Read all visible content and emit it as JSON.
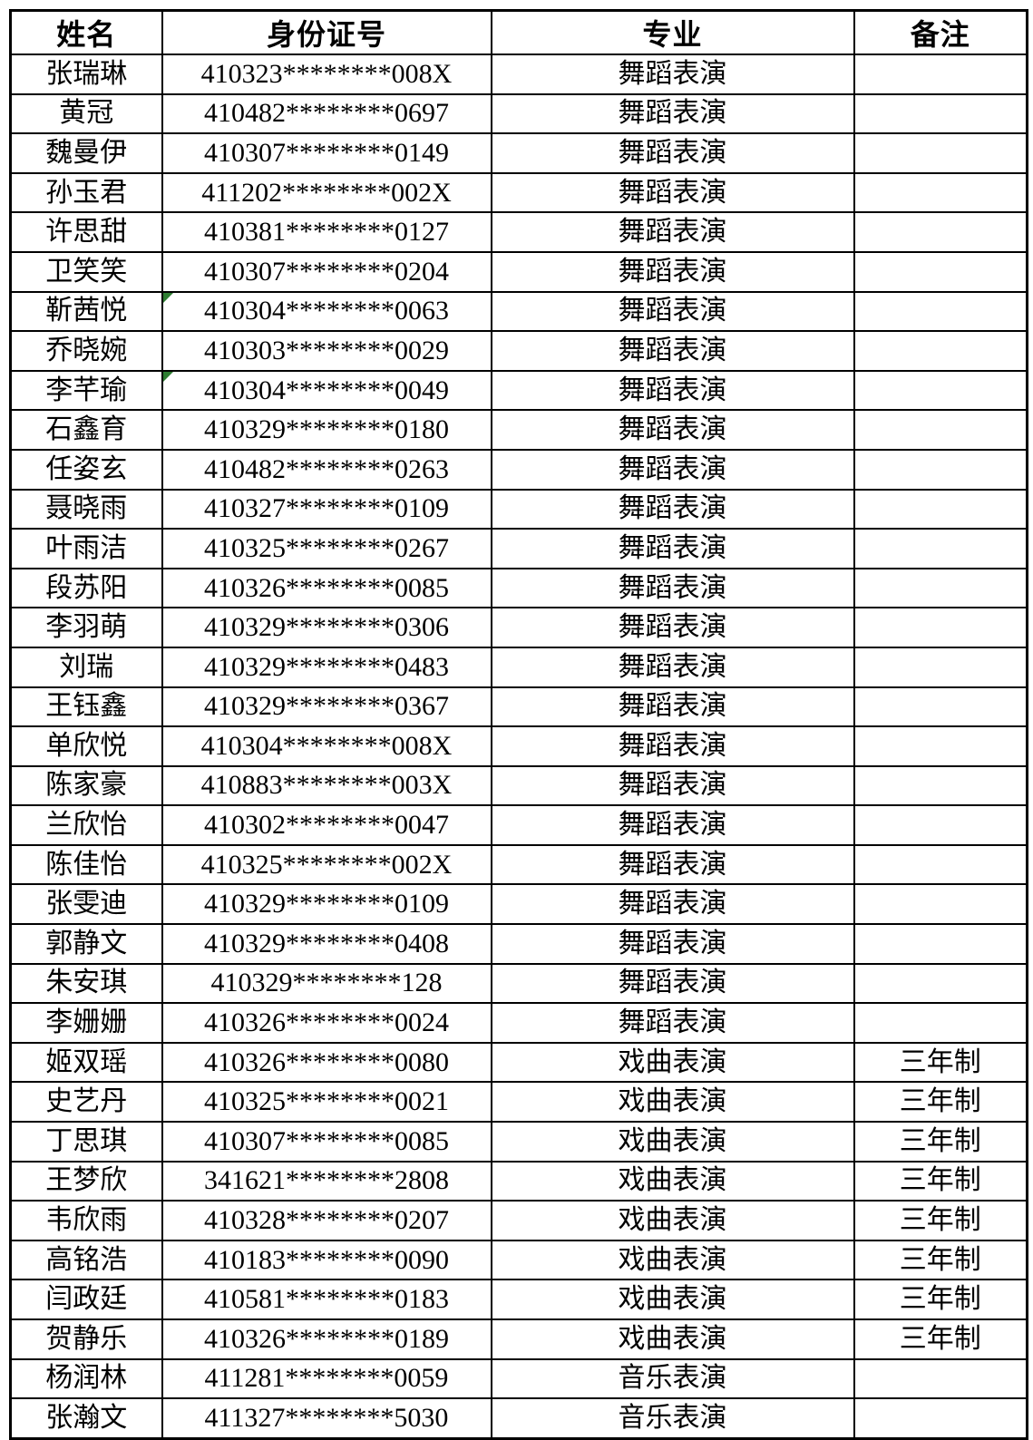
{
  "table": {
    "headers": [
      "姓名",
      "身份证号",
      "专业",
      "备注"
    ],
    "rows": [
      {
        "name": "张瑞琳",
        "id_number": "410323********008X",
        "major": "舞蹈表演",
        "note": "",
        "error_marker": false
      },
      {
        "name": "黄冠",
        "id_number": "410482********0697",
        "major": "舞蹈表演",
        "note": "",
        "error_marker": false
      },
      {
        "name": "魏曼伊",
        "id_number": "410307********0149",
        "major": "舞蹈表演",
        "note": "",
        "error_marker": false
      },
      {
        "name": "孙玉君",
        "id_number": "411202********002X",
        "major": "舞蹈表演",
        "note": "",
        "error_marker": false
      },
      {
        "name": "许思甜",
        "id_number": "410381********0127",
        "major": "舞蹈表演",
        "note": "",
        "error_marker": false
      },
      {
        "name": "卫笑笑",
        "id_number": "410307********0204",
        "major": "舞蹈表演",
        "note": "",
        "error_marker": false
      },
      {
        "name": "靳茜悦",
        "id_number": "410304********0063",
        "major": "舞蹈表演",
        "note": "",
        "error_marker": true
      },
      {
        "name": "乔晓婉",
        "id_number": "410303********0029",
        "major": "舞蹈表演",
        "note": "",
        "error_marker": false
      },
      {
        "name": "李芊瑜",
        "id_number": "410304********0049",
        "major": "舞蹈表演",
        "note": "",
        "error_marker": true
      },
      {
        "name": "石鑫育",
        "id_number": "410329********0180",
        "major": "舞蹈表演",
        "note": "",
        "error_marker": false
      },
      {
        "name": "任姿玄",
        "id_number": "410482********0263",
        "major": "舞蹈表演",
        "note": "",
        "error_marker": false
      },
      {
        "name": "聂晓雨",
        "id_number": "410327********0109",
        "major": "舞蹈表演",
        "note": "",
        "error_marker": false
      },
      {
        "name": "叶雨洁",
        "id_number": "410325********0267",
        "major": "舞蹈表演",
        "note": "",
        "error_marker": false
      },
      {
        "name": "段苏阳",
        "id_number": "410326********0085",
        "major": "舞蹈表演",
        "note": "",
        "error_marker": false
      },
      {
        "name": "李羽萌",
        "id_number": "410329********0306",
        "major": "舞蹈表演",
        "note": "",
        "error_marker": false
      },
      {
        "name": "刘瑞",
        "id_number": "410329********0483",
        "major": "舞蹈表演",
        "note": "",
        "error_marker": false
      },
      {
        "name": "王钰鑫",
        "id_number": "410329********0367",
        "major": "舞蹈表演",
        "note": "",
        "error_marker": false
      },
      {
        "name": "单欣悦",
        "id_number": "410304********008X",
        "major": "舞蹈表演",
        "note": "",
        "error_marker": false
      },
      {
        "name": "陈家豪",
        "id_number": "410883********003X",
        "major": "舞蹈表演",
        "note": "",
        "error_marker": false
      },
      {
        "name": "兰欣怡",
        "id_number": "410302********0047",
        "major": "舞蹈表演",
        "note": "",
        "error_marker": false
      },
      {
        "name": "陈佳怡",
        "id_number": "410325********002X",
        "major": "舞蹈表演",
        "note": "",
        "error_marker": false
      },
      {
        "name": "张雯迪",
        "id_number": "410329********0109",
        "major": "舞蹈表演",
        "note": "",
        "error_marker": false
      },
      {
        "name": "郭静文",
        "id_number": "410329********0408",
        "major": "舞蹈表演",
        "note": "",
        "error_marker": false
      },
      {
        "name": "朱安琪",
        "id_number": "410329********128",
        "major": "舞蹈表演",
        "note": "",
        "error_marker": false
      },
      {
        "name": "李姗姗",
        "id_number": "410326********0024",
        "major": "舞蹈表演",
        "note": "",
        "error_marker": false
      },
      {
        "name": "姬双瑶",
        "id_number": "410326********0080",
        "major": "戏曲表演",
        "note": "三年制",
        "error_marker": false
      },
      {
        "name": "史艺丹",
        "id_number": "410325********0021",
        "major": "戏曲表演",
        "note": "三年制",
        "error_marker": false
      },
      {
        "name": "丁思琪",
        "id_number": "410307********0085",
        "major": "戏曲表演",
        "note": "三年制",
        "error_marker": false
      },
      {
        "name": "王梦欣",
        "id_number": "341621********2808",
        "major": "戏曲表演",
        "note": "三年制",
        "error_marker": false
      },
      {
        "name": "韦欣雨",
        "id_number": "410328********0207",
        "major": "戏曲表演",
        "note": "三年制",
        "error_marker": false
      },
      {
        "name": "高铭浩",
        "id_number": "410183********0090",
        "major": "戏曲表演",
        "note": "三年制",
        "error_marker": false
      },
      {
        "name": "闫政廷",
        "id_number": "410581********0183",
        "major": "戏曲表演",
        "note": "三年制",
        "error_marker": false
      },
      {
        "name": "贺静乐",
        "id_number": "410326********0189",
        "major": "戏曲表演",
        "note": "三年制",
        "error_marker": false
      },
      {
        "name": "杨润林",
        "id_number": "411281********0059",
        "major": "音乐表演",
        "note": "",
        "error_marker": false
      },
      {
        "name": "张瀚文",
        "id_number": "411327********5030",
        "major": "音乐表演",
        "note": "",
        "error_marker": false
      }
    ]
  },
  "colors": {
    "border": "#000000",
    "text": "#000000",
    "page_background": "#ffffff",
    "error_triangle": "#2e7d32"
  }
}
